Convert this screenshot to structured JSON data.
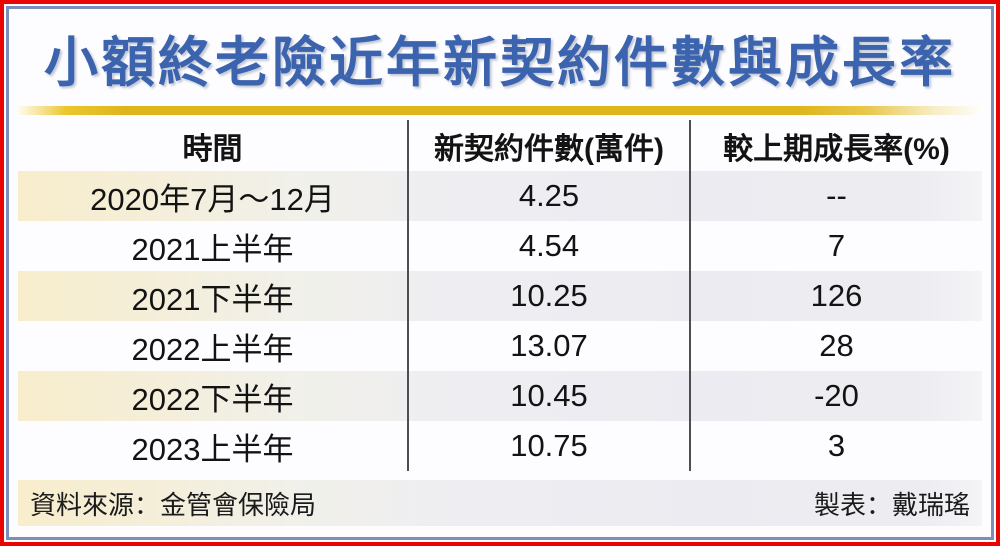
{
  "title": "小額終老險近年新契約件數與成長率",
  "table": {
    "columns": {
      "time": "時間",
      "contracts": "新契約件數(萬件)",
      "growth": "較上期成長率(%)"
    },
    "rows": [
      {
        "period": "2020年7月～12月",
        "contracts": "4.25",
        "growth": "--"
      },
      {
        "period": "2021上半年",
        "contracts": "4.54",
        "growth": "7"
      },
      {
        "period": "2021下半年",
        "contracts": "10.25",
        "growth": "126"
      },
      {
        "period": "2022上半年",
        "contracts": "13.07",
        "growth": "28"
      },
      {
        "period": "2022下半年",
        "contracts": "10.45",
        "growth": "-20"
      },
      {
        "period": "2023上半年",
        "contracts": "10.75",
        "growth": "3"
      }
    ]
  },
  "footer": {
    "source": "資料來源：金管會保險局",
    "credit": "製表：戴瑞瑤"
  },
  "colors": {
    "title_blue": "#3b63ae",
    "gold_bar": "#dfb51c",
    "outer_border_red": "#ea0505",
    "inner_border_blue": "#7b8eb8",
    "row_shade_cream": "#f8eecd",
    "row_shade_gray": "#ebebf1",
    "divider_gray": "#4e4e4e"
  },
  "chart_data": {
    "type": "table",
    "title": "小額終老險近年新契約件數與成長率",
    "columns": [
      "時間",
      "新契約件數(萬件)",
      "較上期成長率(%)"
    ],
    "rows": [
      [
        "2020年7月～12月",
        "4.25",
        "--"
      ],
      [
        "2021上半年",
        "4.54",
        "7"
      ],
      [
        "2021下半年",
        "10.25",
        "126"
      ],
      [
        "2022上半年",
        "13.07",
        "28"
      ],
      [
        "2022下半年",
        "10.45",
        "-20"
      ],
      [
        "2023上半年",
        "10.75",
        "3"
      ]
    ],
    "series_numeric": {
      "new_contracts_10k": [
        4.25,
        4.54,
        10.25,
        13.07,
        10.45,
        10.75
      ],
      "growth_pct": [
        null,
        7,
        126,
        28,
        -20,
        3
      ]
    }
  }
}
